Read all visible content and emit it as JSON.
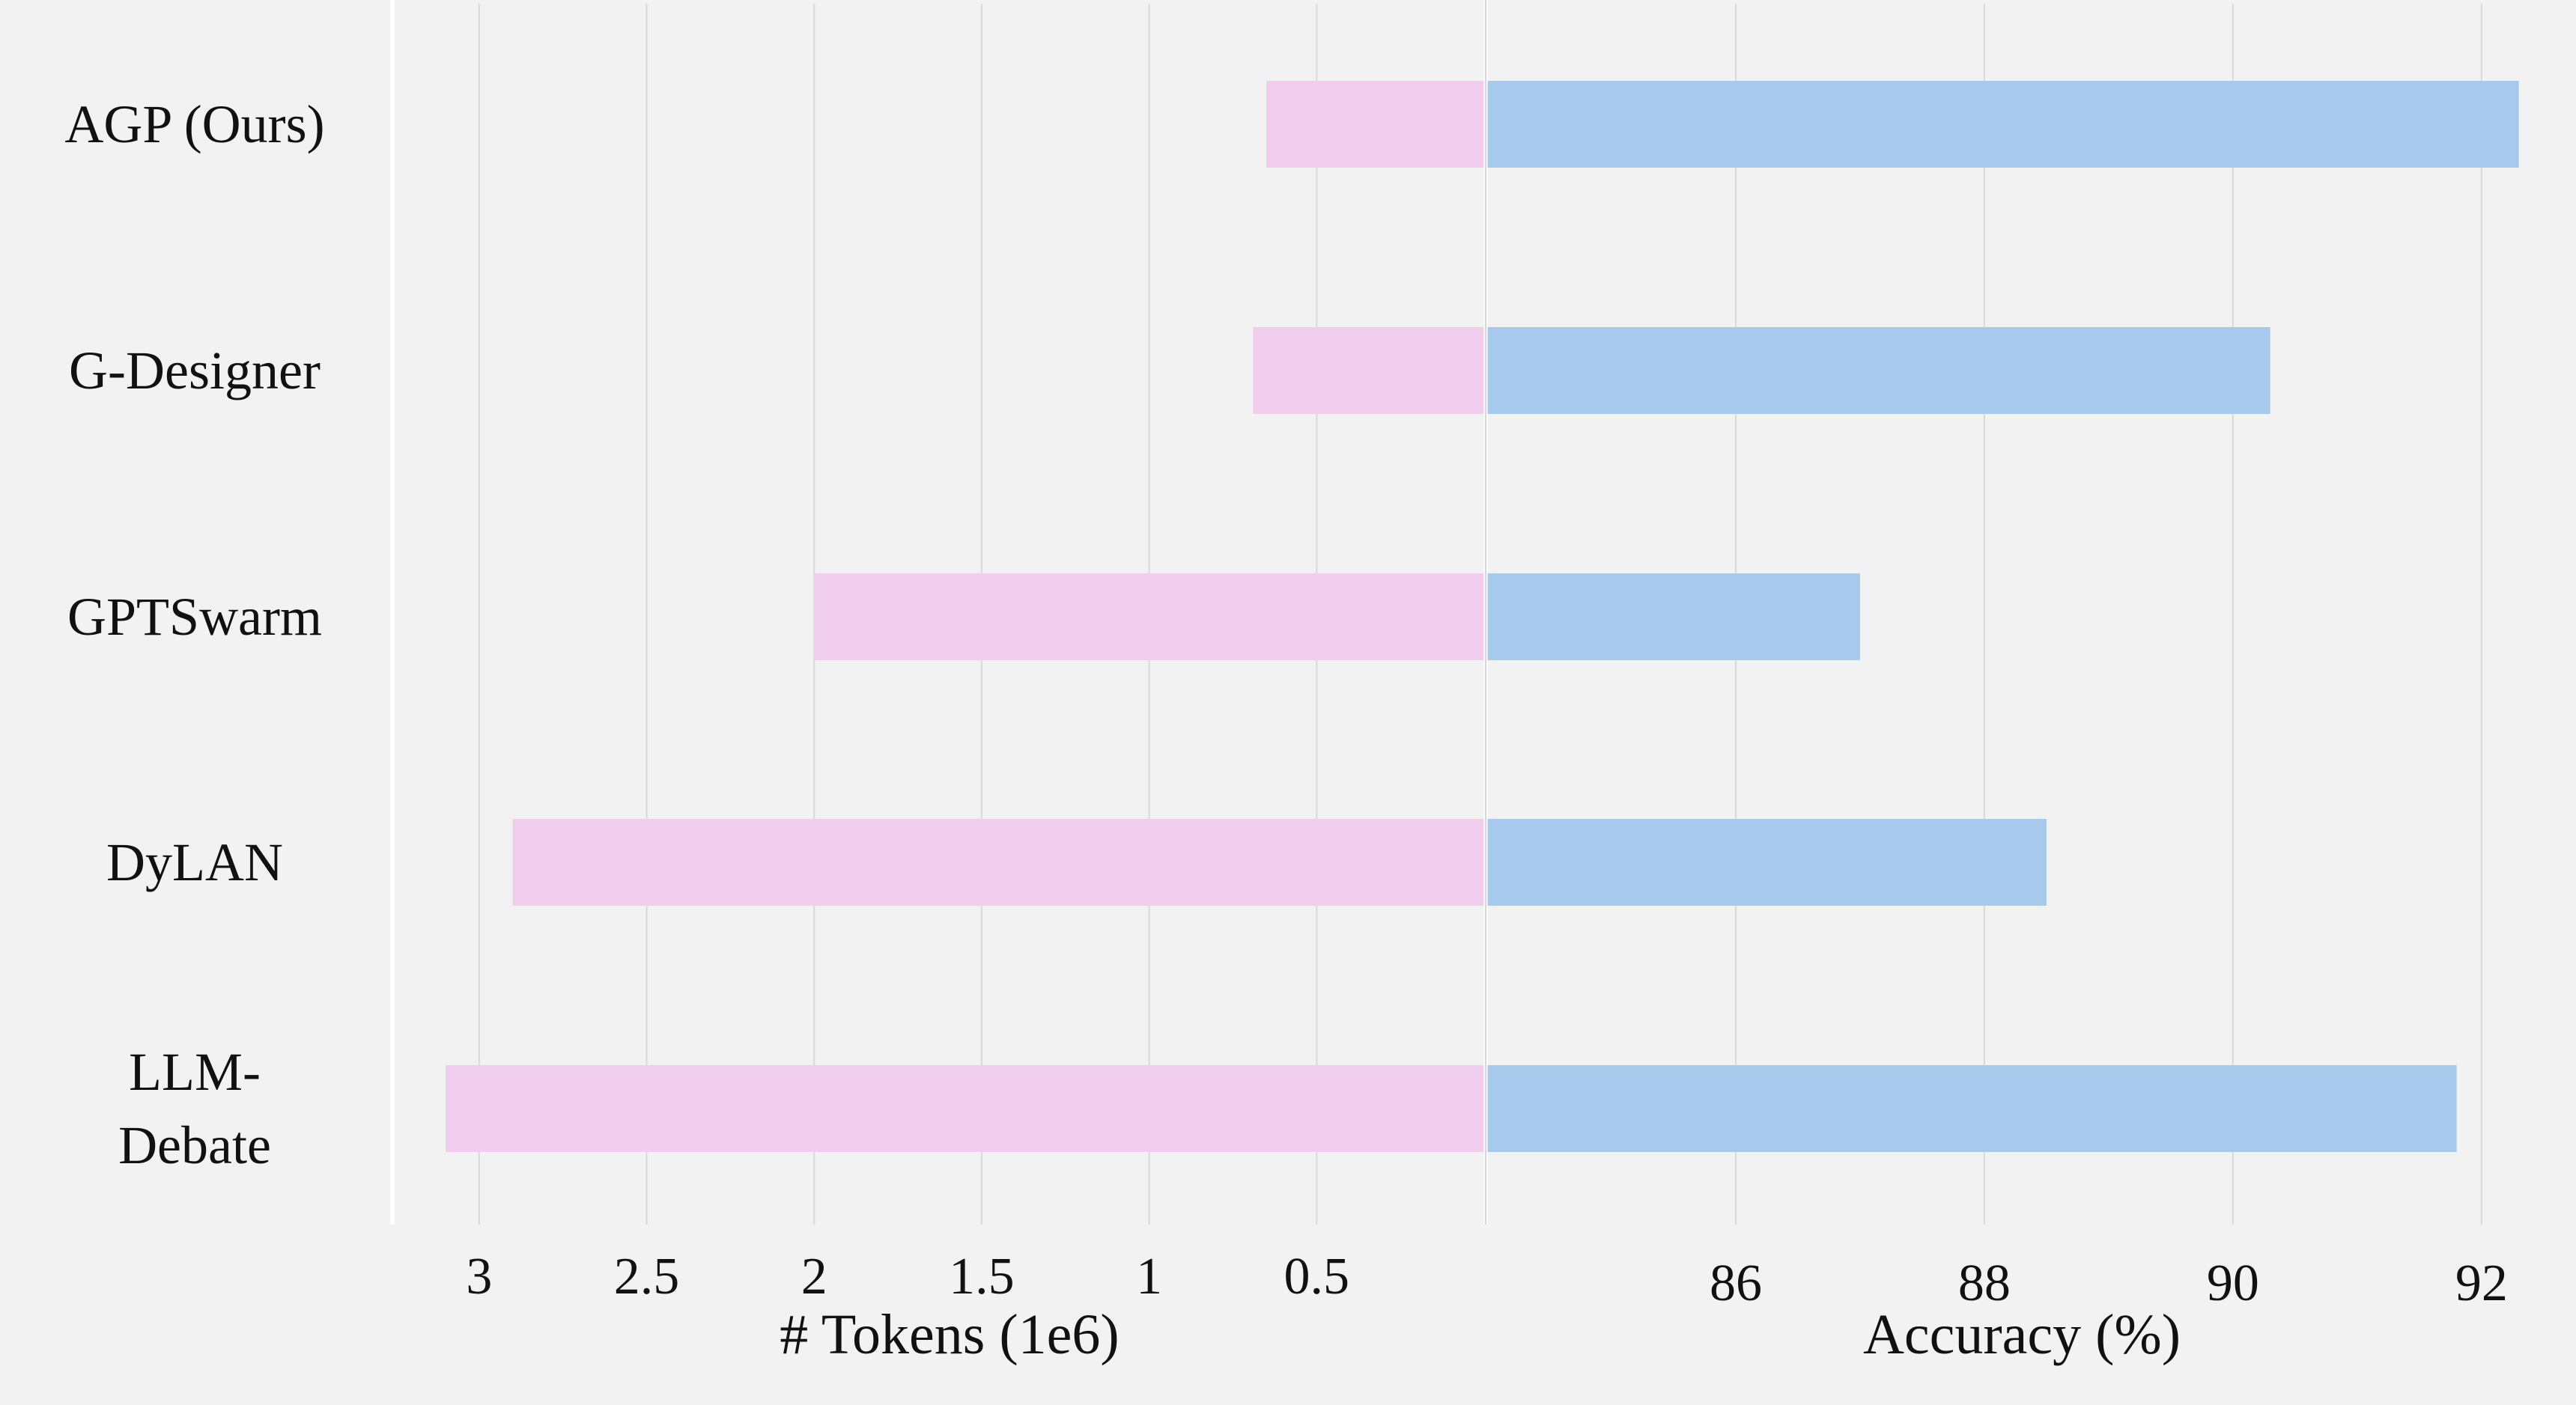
{
  "chart_data": {
    "type": "bar",
    "layout": "back-to-back horizontal bars",
    "categories": [
      "AGP (Ours)",
      "G-Designer",
      "GPTSwarm",
      "DyLAN",
      "LLM-Debate"
    ],
    "category_lines": [
      [
        "AGP (Ours)"
      ],
      [
        "G-Designer"
      ],
      [
        "GPTSwarm"
      ],
      [
        "DyLAN"
      ],
      [
        "LLM-",
        "Debate"
      ]
    ],
    "left_panel": {
      "xlabel": "# Tokens (1e6)",
      "values": [
        0.65,
        0.69,
        2.0,
        2.9,
        3.1
      ],
      "xlim": [
        3.25,
        0
      ],
      "ticks": [
        3,
        2.5,
        2,
        1.5,
        1,
        0.5
      ],
      "tick_labels": [
        "3",
        "2.5",
        "2",
        "1.5",
        "1",
        "0.5"
      ],
      "color": "#f0cdec"
    },
    "right_panel": {
      "xlabel": "Accuracy (%)",
      "values": [
        92.3,
        90.3,
        87.0,
        88.5,
        91.8
      ],
      "xlim": [
        84,
        92.7
      ],
      "ticks": [
        86,
        88,
        90,
        92
      ],
      "tick_labels": [
        "86",
        "88",
        "90",
        "92"
      ],
      "color": "#a7c9ec"
    },
    "grid": true,
    "background": "#f2f2f2",
    "grid_color": "#d9d9d9"
  }
}
